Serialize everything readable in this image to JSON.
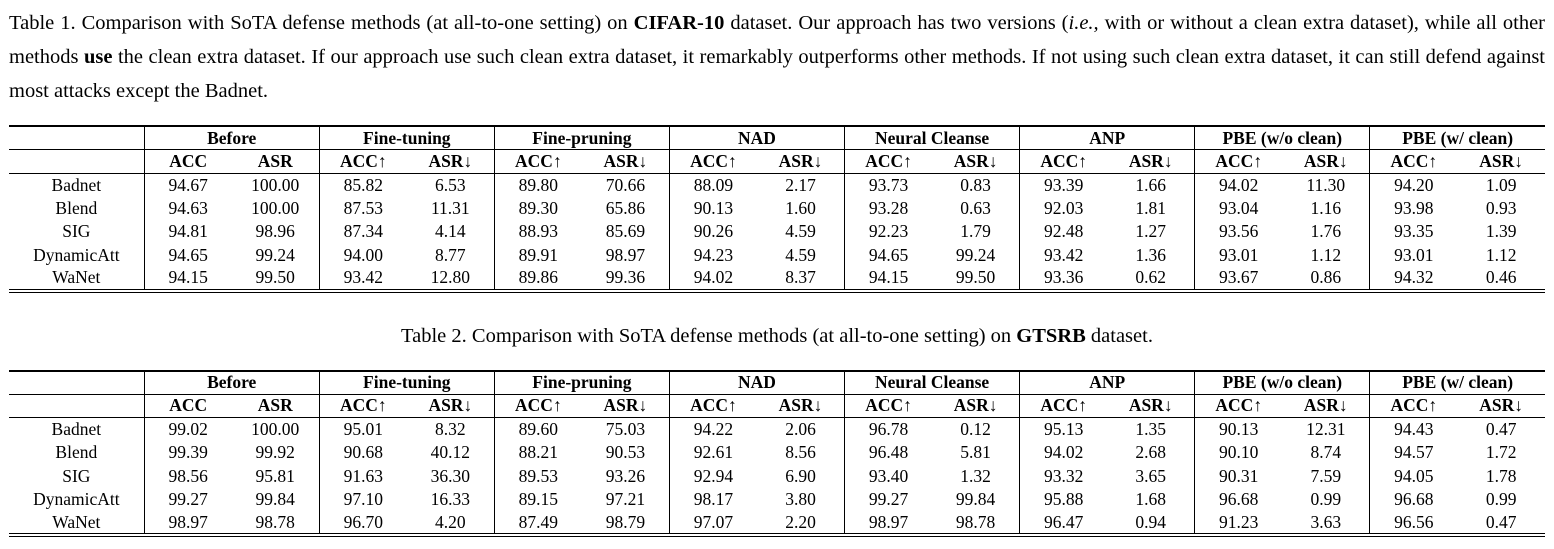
{
  "page": {
    "background": "#ffffff",
    "text_color": "#000000",
    "border_color": "#000000"
  },
  "tables": [
    {
      "caption_align": "justify",
      "caption_segments": [
        {
          "text": "Table 1. Comparison with SoTA defense methods (at all-to-one setting) on ",
          "style": "normal"
        },
        {
          "text": "CIFAR-10",
          "style": "bold"
        },
        {
          "text": " dataset. Our approach has two versions (",
          "style": "normal"
        },
        {
          "text": "i.e.,",
          "style": "italic"
        },
        {
          "text": " with or without a clean extra dataset), while all other methods ",
          "style": "normal"
        },
        {
          "text": "use",
          "style": "bold"
        },
        {
          "text": " the clean extra dataset. If our approach use such clean extra dataset, it remarkably outperforms other methods. If not using such clean extra dataset, it can still defend against most attacks except the Badnet.",
          "style": "normal"
        }
      ],
      "groups": [
        "Before",
        "Fine-tuning",
        "Fine-pruning",
        "NAD",
        "Neural Cleanse",
        "ANP",
        "PBE (w/o clean)",
        "PBE (w/ clean)"
      ],
      "subheaders": [
        "ACC",
        "ASR",
        "ACC↑",
        "ASR↓",
        "ACC↑",
        "ASR↓",
        "ACC↑",
        "ASR↓",
        "ACC↑",
        "ASR↓",
        "ACC↑",
        "ASR↓",
        "ACC↑",
        "ASR↓",
        "ACC↑",
        "ASR↓"
      ],
      "rows": [
        {
          "method": "Badnet",
          "values": [
            "94.67",
            "100.00",
            "85.82",
            "6.53",
            "89.80",
            "70.66",
            "88.09",
            "2.17",
            "93.73",
            "0.83",
            "93.39",
            "1.66",
            "94.02",
            "11.30",
            "94.20",
            "1.09"
          ]
        },
        {
          "method": "Blend",
          "values": [
            "94.63",
            "100.00",
            "87.53",
            "11.31",
            "89.30",
            "65.86",
            "90.13",
            "1.60",
            "93.28",
            "0.63",
            "92.03",
            "1.81",
            "93.04",
            "1.16",
            "93.98",
            "0.93"
          ]
        },
        {
          "method": "SIG",
          "values": [
            "94.81",
            "98.96",
            "87.34",
            "4.14",
            "88.93",
            "85.69",
            "90.26",
            "4.59",
            "92.23",
            "1.79",
            "92.48",
            "1.27",
            "93.56",
            "1.76",
            "93.35",
            "1.39"
          ]
        },
        {
          "method": "DynamicAtt",
          "values": [
            "94.65",
            "99.24",
            "94.00",
            "8.77",
            "89.91",
            "98.97",
            "94.23",
            "4.59",
            "94.65",
            "99.24",
            "93.42",
            "1.36",
            "93.01",
            "1.12",
            "93.01",
            "1.12"
          ]
        },
        {
          "method": "WaNet",
          "values": [
            "94.15",
            "99.50",
            "93.42",
            "12.80",
            "89.86",
            "99.36",
            "94.02",
            "8.37",
            "94.15",
            "99.50",
            "93.36",
            "0.62",
            "93.67",
            "0.86",
            "94.32",
            "0.46"
          ]
        }
      ]
    },
    {
      "caption_align": "center",
      "caption_segments": [
        {
          "text": "Table 2. Comparison with SoTA defense methods (at all-to-one setting) on ",
          "style": "normal"
        },
        {
          "text": "GTSRB",
          "style": "bold"
        },
        {
          "text": " dataset.",
          "style": "normal"
        }
      ],
      "groups": [
        "Before",
        "Fine-tuning",
        "Fine-pruning",
        "NAD",
        "Neural Cleanse",
        "ANP",
        "PBE (w/o clean)",
        "PBE (w/ clean)"
      ],
      "subheaders": [
        "ACC",
        "ASR",
        "ACC↑",
        "ASR↓",
        "ACC↑",
        "ASR↓",
        "ACC↑",
        "ASR↓",
        "ACC↑",
        "ASR↓",
        "ACC↑",
        "ASR↓",
        "ACC↑",
        "ASR↓",
        "ACC↑",
        "ASR↓"
      ],
      "rows": [
        {
          "method": "Badnet",
          "values": [
            "99.02",
            "100.00",
            "95.01",
            "8.32",
            "89.60",
            "75.03",
            "94.22",
            "2.06",
            "96.78",
            "0.12",
            "95.13",
            "1.35",
            "90.13",
            "12.31",
            "94.43",
            "0.47"
          ]
        },
        {
          "method": "Blend",
          "values": [
            "99.39",
            "99.92",
            "90.68",
            "40.12",
            "88.21",
            "90.53",
            "92.61",
            "8.56",
            "96.48",
            "5.81",
            "94.02",
            "2.68",
            "90.10",
            "8.74",
            "94.57",
            "1.72"
          ]
        },
        {
          "method": "SIG",
          "values": [
            "98.56",
            "95.81",
            "91.63",
            "36.30",
            "89.53",
            "93.26",
            "92.94",
            "6.90",
            "93.40",
            "1.32",
            "93.32",
            "3.65",
            "90.31",
            "7.59",
            "94.05",
            "1.78"
          ]
        },
        {
          "method": "DynamicAtt",
          "values": [
            "99.27",
            "99.84",
            "97.10",
            "16.33",
            "89.15",
            "97.21",
            "98.17",
            "3.80",
            "99.27",
            "99.84",
            "95.88",
            "1.68",
            "96.68",
            "0.99",
            "96.68",
            "0.99"
          ]
        },
        {
          "method": "WaNet",
          "values": [
            "98.97",
            "98.78",
            "96.70",
            "4.20",
            "87.49",
            "98.79",
            "97.07",
            "2.20",
            "98.97",
            "98.78",
            "96.47",
            "0.94",
            "91.23",
            "3.63",
            "96.56",
            "0.47"
          ]
        }
      ]
    }
  ]
}
